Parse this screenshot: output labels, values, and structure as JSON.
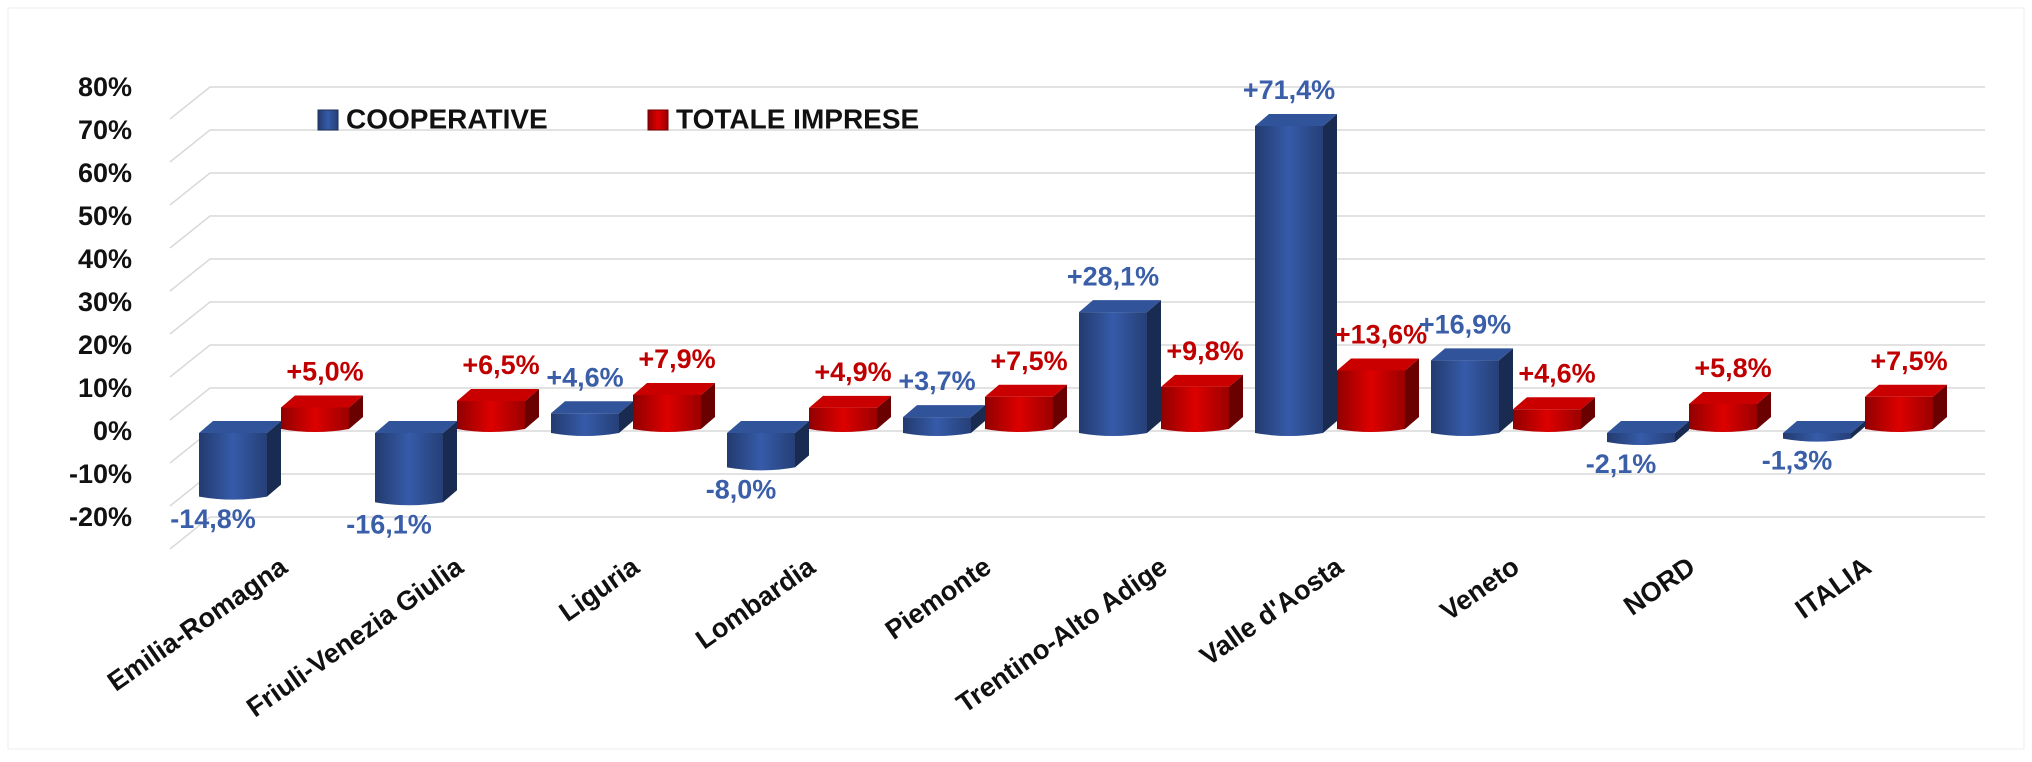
{
  "chart_data": {
    "type": "bar3d",
    "categories": [
      "Emilia-Romagna",
      "Friuli-Venezia Giulia",
      "Liguria",
      "Lombardia",
      "Piemonte",
      "Trentino-Alto Adige",
      "Valle d'Aosta",
      "Veneto",
      "NORD",
      "ITALIA"
    ],
    "series": [
      {
        "name": "COOPERATIVE",
        "color": "#2f4f93",
        "values": [
          -14.8,
          -16.1,
          4.6,
          -8.0,
          3.7,
          28.1,
          71.4,
          16.9,
          -2.1,
          -1.3
        ],
        "value_labels": [
          "-14,8%",
          "-16,1%",
          "+4,6%",
          "-8,0%",
          "+3,7%",
          "+28,1%",
          "+71,4%",
          "+16,9%",
          "-2,1%",
          "-1,3%"
        ],
        "label_color": "#3a5ea8"
      },
      {
        "name": "TOTALE IMPRESE",
        "color": "#c00000",
        "values": [
          5.0,
          6.5,
          7.9,
          4.9,
          7.5,
          9.8,
          13.6,
          4.6,
          5.8,
          7.5
        ],
        "value_labels": [
          "+5,0%",
          "+6,5%",
          "+7,9%",
          "+4,9%",
          "+7,5%",
          "+9,8%",
          "+13,6%",
          "+4,6%",
          "+5,8%",
          "+7,5%"
        ],
        "label_color": "#c00000"
      }
    ],
    "ylim": [
      -20,
      80
    ],
    "yticks": [
      {
        "value": -20,
        "label": "-20%"
      },
      {
        "value": -10,
        "label": "-10%"
      },
      {
        "value": 0,
        "label": "0%"
      },
      {
        "value": 10,
        "label": "10%"
      },
      {
        "value": 20,
        "label": "20%"
      },
      {
        "value": 30,
        "label": "30%"
      },
      {
        "value": 40,
        "label": "40%"
      },
      {
        "value": 50,
        "label": "50%"
      },
      {
        "value": 60,
        "label": "60%"
      },
      {
        "value": 70,
        "label": "70%"
      },
      {
        "value": 80,
        "label": "80%"
      }
    ],
    "grid": true
  }
}
